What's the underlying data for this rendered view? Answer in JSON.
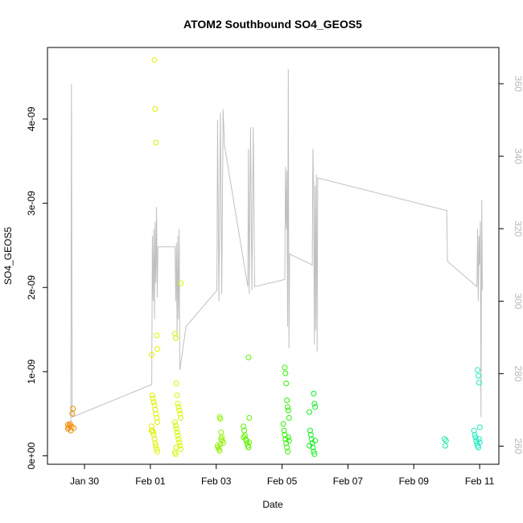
{
  "chart_data": {
    "type": "scatter",
    "title": "ATOM2 Southbound SO4_GEOS5",
    "xlabel": "Date",
    "ylabel": "SO4_GEOS5",
    "xlim": [
      "2017-01-28T21:00",
      "2017-02-11T14:00"
    ],
    "ylim": [
      -1e-10,
      4.85e-09
    ],
    "y2lim": [
      255,
      370
    ],
    "x_ticks": [
      {
        "date": "2017-01-30",
        "label": "Jan 30"
      },
      {
        "date": "2017-02-01",
        "label": "Feb 01"
      },
      {
        "date": "2017-02-03",
        "label": "Feb 03"
      },
      {
        "date": "2017-02-05",
        "label": "Feb 05"
      },
      {
        "date": "2017-02-07",
        "label": "Feb 07"
      },
      {
        "date": "2017-02-09",
        "label": "Feb 09"
      },
      {
        "date": "2017-02-11",
        "label": "Feb 11"
      }
    ],
    "y_ticks": [
      {
        "value": 0,
        "label": "0e+00"
      },
      {
        "value": 1e-09,
        "label": "1e-09"
      },
      {
        "value": 2e-09,
        "label": "2e-09"
      },
      {
        "value": 3e-09,
        "label": "3e-09"
      },
      {
        "value": 4e-09,
        "label": "4e-09"
      }
    ],
    "y2_ticks": [
      {
        "value": 260,
        "label": "260"
      },
      {
        "value": 280,
        "label": "280"
      },
      {
        "value": 300,
        "label": "300"
      },
      {
        "value": 320,
        "label": "320"
      },
      {
        "value": 340,
        "label": "340"
      },
      {
        "value": 360,
        "label": "360"
      }
    ],
    "grid": false,
    "legend": "none",
    "point_marker": "open-circle",
    "line_color": "#c0c0c0",
    "flights": [
      {
        "x": "2017-01-29T14:00",
        "color": "#f08c00",
        "points": [
          3.2e-10,
          3.4e-10,
          3.6e-10,
          3.8e-10,
          3e-10,
          3.5e-10,
          5e-10,
          5.6e-10,
          3.3e-10,
          3.7e-10
        ]
      },
      {
        "x": "2017-02-01T03:00",
        "color": "#e0f000",
        "points": [
          4.7e-09,
          4.12e-09,
          3.72e-09,
          1.43e-09,
          1.27e-09,
          1.2e-09,
          7.2e-10,
          6.8e-10,
          6.4e-10,
          6e-10,
          5.5e-10,
          5e-10,
          4.5e-10,
          4e-10,
          3.5e-10,
          3e-10,
          2.8e-10,
          2.5e-10,
          2e-10,
          1.5e-10,
          1.2e-10,
          8e-11,
          5e-11,
          3e-10
        ]
      },
      {
        "x": "2017-02-01T20:00",
        "color": "#d6f500",
        "points": [
          2.05e-09,
          1.45e-09,
          1.4e-09,
          8.6e-10,
          7.2e-10,
          6.2e-10,
          5.8e-10,
          5.4e-10,
          5e-10,
          4.5e-10,
          4e-10,
          3.6e-10,
          3.2e-10,
          2.8e-10,
          2.4e-10,
          2e-10,
          1.6e-10,
          1.2e-10,
          8e-11,
          4e-11,
          2e-11,
          1e-10
        ]
      },
      {
        "x": "2017-02-03T03:00",
        "color": "#8ef000",
        "points": [
          4.6e-10,
          4.4e-10,
          2.8e-10,
          2.2e-10,
          1.8e-10,
          1.5e-10,
          1.2e-10,
          1e-10,
          8e-11,
          6e-11,
          1.4e-10,
          2e-10
        ]
      },
      {
        "x": "2017-02-03T22:00",
        "color": "#5ef000",
        "points": [
          1.17e-09,
          4.5e-10,
          3.5e-10,
          3e-10,
          2.4e-10,
          2e-10,
          1.8e-10,
          1.5e-10,
          1.2e-10,
          1e-10,
          1.6e-10,
          2.2e-10
        ]
      },
      {
        "x": "2017-02-05T03:00",
        "color": "#30f000",
        "points": [
          1.05e-09,
          9.8e-10,
          8.6e-10,
          6.6e-10,
          5.8e-10,
          5.4e-10,
          4.5e-10,
          3.8e-10,
          3e-10,
          2.5e-10,
          2e-10,
          1.5e-10,
          1e-10,
          5e-11,
          2.2e-10,
          1.8e-10
        ]
      },
      {
        "x": "2017-02-05T22:00",
        "color": "#10f020",
        "points": [
          7.4e-10,
          6.2e-10,
          5.8e-10,
          5.2e-10,
          3e-10,
          2.5e-10,
          2e-10,
          1.5e-10,
          1e-10,
          5e-11,
          2e-11,
          1.8e-10,
          1.2e-10
        ]
      },
      {
        "x": "2017-02-10T00:00",
        "color": "#20e8a0",
        "points": [
          2e-10,
          1.2e-10,
          1.8e-10
        ]
      },
      {
        "x": "2017-02-10T22:00",
        "color": "#20e8c0",
        "points": [
          1.02e-09,
          9.5e-10,
          8.7e-10,
          3.4e-10,
          3e-10,
          2.5e-10,
          2.2e-10,
          1.8e-10,
          1.5e-10,
          1.2e-10,
          1e-10,
          2e-10,
          1.6e-10
        ]
      }
    ],
    "altitude_line": [
      [
        "2017-01-29T14:00",
        266
      ],
      [
        "2017-01-29T14:30",
        360
      ],
      [
        "2017-01-29T15:00",
        268
      ],
      [
        "2017-02-01T01:00",
        277
      ],
      [
        "2017-02-01T01:30",
        318
      ],
      [
        "2017-02-01T02:00",
        300
      ],
      [
        "2017-02-01T02:30",
        320
      ],
      [
        "2017-02-01T03:00",
        295
      ],
      [
        "2017-02-01T03:30",
        322
      ],
      [
        "2017-02-01T04:00",
        305
      ],
      [
        "2017-02-01T04:30",
        326
      ],
      [
        "2017-02-01T05:00",
        301
      ],
      [
        "2017-02-01T05:30",
        315
      ],
      [
        "2017-02-01T18:00",
        315
      ],
      [
        "2017-02-01T18:30",
        300
      ],
      [
        "2017-02-01T19:00",
        316
      ],
      [
        "2017-02-01T19:30",
        290
      ],
      [
        "2017-02-01T20:00",
        318
      ],
      [
        "2017-02-01T20:30",
        295
      ],
      [
        "2017-02-01T21:00",
        320
      ],
      [
        "2017-02-01T21:30",
        281
      ],
      [
        "2017-02-02T02:00",
        293
      ],
      [
        "2017-02-03T00:30",
        303
      ],
      [
        "2017-02-03T01:00",
        350
      ],
      [
        "2017-02-03T02:00",
        300
      ],
      [
        "2017-02-03T03:00",
        352
      ],
      [
        "2017-02-03T04:00",
        302
      ],
      [
        "2017-02-03T05:00",
        353
      ],
      [
        "2017-02-03T06:00",
        343
      ],
      [
        "2017-02-03T23:00",
        304
      ],
      [
        "2017-02-03T23:30",
        342
      ],
      [
        "2017-02-04T00:00",
        302
      ],
      [
        "2017-02-04T01:00",
        348
      ],
      [
        "2017-02-04T02:00",
        303
      ],
      [
        "2017-02-04T03:00",
        348
      ],
      [
        "2017-02-04T04:00",
        304
      ],
      [
        "2017-02-05T02:00",
        306
      ],
      [
        "2017-02-05T02:30",
        337
      ],
      [
        "2017-02-05T03:00",
        320
      ],
      [
        "2017-02-05T03:30",
        336
      ],
      [
        "2017-02-05T04:00",
        293
      ],
      [
        "2017-02-05T04:30",
        364
      ],
      [
        "2017-02-05T05:00",
        287
      ],
      [
        "2017-02-05T05:30",
        313
      ],
      [
        "2017-02-05T22:00",
        310
      ],
      [
        "2017-02-05T22:30",
        342
      ],
      [
        "2017-02-05T23:00",
        330
      ],
      [
        "2017-02-05T23:30",
        288
      ],
      [
        "2017-02-06T00:00",
        332
      ],
      [
        "2017-02-06T00:30",
        292
      ],
      [
        "2017-02-06T01:00",
        335
      ],
      [
        "2017-02-06T01:30",
        286
      ],
      [
        "2017-02-06T02:00",
        334
      ],
      [
        "2017-02-10T00:00",
        325
      ],
      [
        "2017-02-10T00:30",
        311
      ],
      [
        "2017-02-10T22:00",
        304
      ],
      [
        "2017-02-10T22:30",
        320
      ],
      [
        "2017-02-10T23:00",
        300
      ],
      [
        "2017-02-10T23:30",
        318
      ],
      [
        "2017-02-11T00:00",
        310
      ],
      [
        "2017-02-11T00:30",
        322
      ],
      [
        "2017-02-11T01:00",
        268
      ],
      [
        "2017-02-11T01:30",
        328
      ],
      [
        "2017-02-11T02:00",
        303
      ]
    ]
  }
}
